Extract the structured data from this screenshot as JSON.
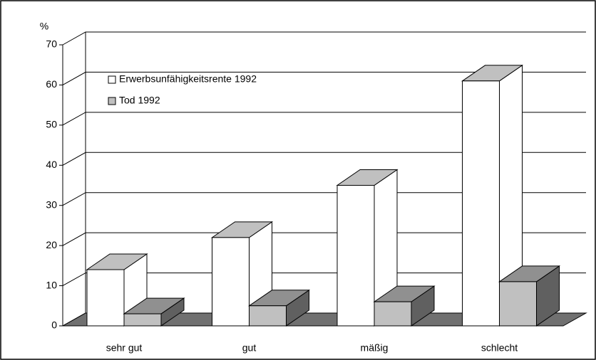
{
  "chart_data": {
    "type": "bar3d",
    "y_label": "%",
    "categories": [
      "sehr gut",
      "gut",
      "mäßig",
      "schlecht"
    ],
    "series": [
      {
        "name": "Erwerbsunfähigkeitsrente 1992",
        "color": "#ffffff",
        "values": [
          14,
          22,
          35,
          61
        ]
      },
      {
        "name": "Tod 1992",
        "color": "#c0c0c0",
        "values": [
          3,
          5,
          6,
          11
        ]
      }
    ],
    "ylim": [
      0,
      70
    ],
    "yticks": [
      0,
      10,
      20,
      30,
      40,
      50,
      60,
      70
    ],
    "grid": true
  }
}
